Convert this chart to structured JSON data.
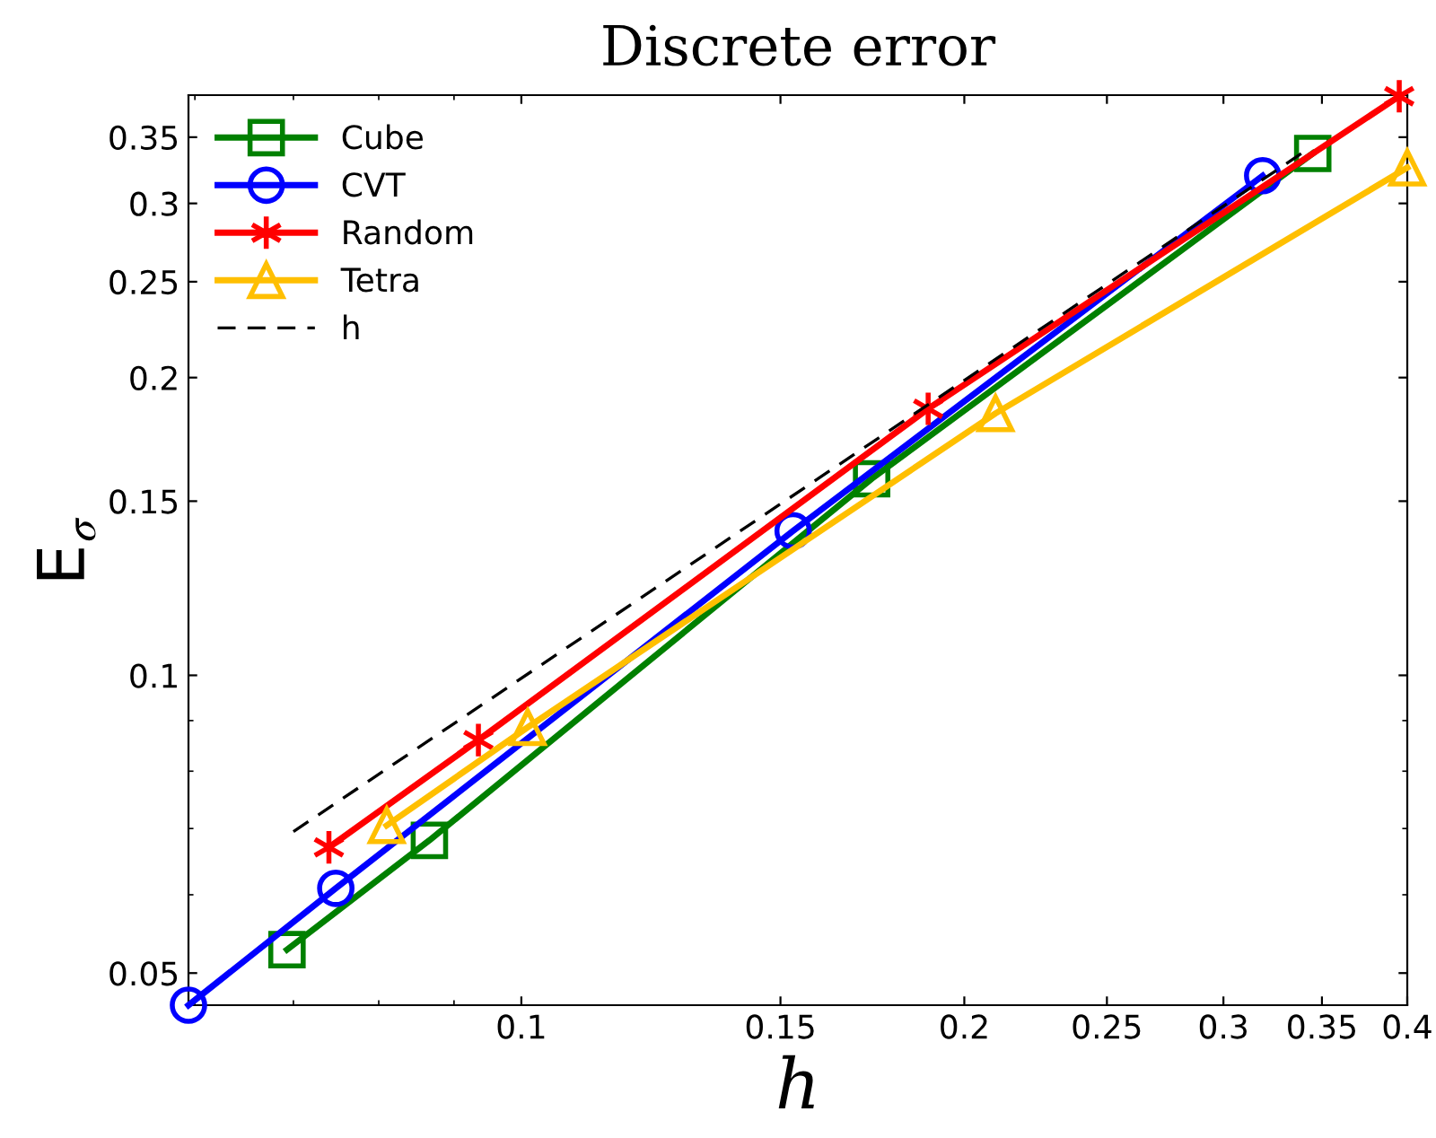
{
  "chart_data": {
    "type": "line",
    "title": "Discrete error",
    "xlabel": "h",
    "ylabel": "E$_{σ}$",
    "log": "xy",
    "xlim": [
      0.0594,
      0.4
    ],
    "ylim": [
      0.0464,
      0.386
    ],
    "xticks": [
      0.1,
      0.15,
      0.2,
      0.25,
      0.3,
      0.35,
      0.4
    ],
    "yticks": [
      0.05,
      0.1,
      0.15,
      0.2,
      0.25,
      0.3,
      0.35
    ],
    "grid": false,
    "legend": "top left",
    "series": [
      {
        "name": "Cube",
        "color": "#008000",
        "marker": "square",
        "x": [
          0.0693,
          0.0866,
          0.173,
          0.345
        ],
        "values": [
          0.0528,
          0.0681,
          0.158,
          0.337
        ]
      },
      {
        "name": "CVT",
        "color": "#0000ff",
        "marker": "circle",
        "x": [
          0.0594,
          0.0748,
          0.153,
          0.319
        ],
        "values": [
          0.0464,
          0.0609,
          0.14,
          0.32
        ]
      },
      {
        "name": "Random",
        "color": "#ff0000",
        "marker": "cross",
        "x": [
          0.074,
          0.0935,
          0.189,
          0.395
        ],
        "values": [
          0.067,
          0.086,
          0.186,
          0.385
        ]
      },
      {
        "name": "Tetra",
        "color": "#ffbf00",
        "marker": "triangle",
        "x": [
          0.081,
          0.101,
          0.21,
          0.4
        ],
        "values": [
          0.0705,
          0.0886,
          0.184,
          0.326
        ]
      },
      {
        "name": "h",
        "color": "#000000",
        "marker": "none",
        "line_style": "dashed",
        "x": [
          0.07,
          0.34
        ],
        "values": [
          0.0695,
          0.338
        ]
      }
    ]
  }
}
